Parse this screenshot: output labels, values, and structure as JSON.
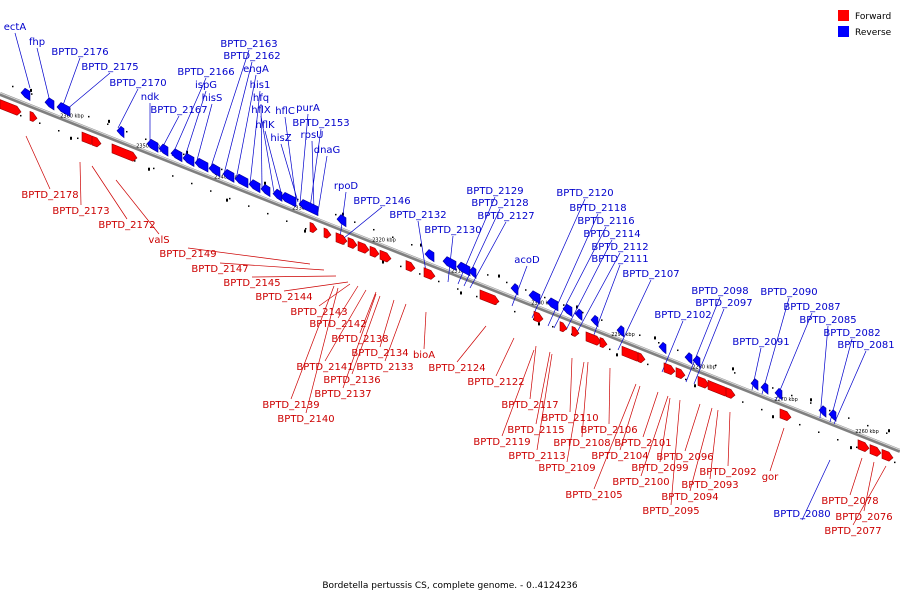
{
  "colors": {
    "forward": "#ff0000",
    "reverse": "#0000ff",
    "forward_label": "#cc0000",
    "reverse_label": "#0000cc",
    "backbone": "#808080"
  },
  "legend": [
    {
      "label": "Forward",
      "strand": "forward"
    },
    {
      "label": "Reverse",
      "strand": "reverse"
    }
  ],
  "caption": "Bordetella pertussis CS, complete genome. - 0..4124236",
  "ticks": [
    "2360 kbp",
    "2350 kbp",
    "2340 kbp",
    "2330 kbp",
    "2320 kbp",
    "2310 kbp",
    "2300 kbp",
    "2290 kbp",
    "2280 kbp",
    "2270 kbp",
    "2260 kbp"
  ],
  "reverse_genes": [
    "ectA",
    "fhp",
    "BPTD_2176",
    "BPTD_2175",
    "BPTD_2170",
    "ndk",
    "BPTD_2167",
    "BPTD_2166",
    "ispG",
    "hisS",
    "BPTD_2163",
    "BPTD_2162",
    "engA",
    "his1",
    "hfq",
    "hflX",
    "hflK",
    "hflC",
    "hisZ",
    "purA",
    "BPTD_2153",
    "rpsU",
    "dnaG",
    "rpoD",
    "BPTD_2146",
    "BPTD_2132",
    "BPTD_2130",
    "BPTD_2129",
    "BPTD_2128",
    "BPTD_2127",
    "acoD",
    "BPTD_2120",
    "BPTD_2118",
    "BPTD_2116",
    "BPTD_2114",
    "BPTD_2112",
    "BPTD_2111",
    "BPTD_2107",
    "BPTD_2102",
    "BPTD_2098",
    "BPTD_2097",
    "BPTD_2091",
    "BPTD_2090",
    "BPTD_2087",
    "BPTD_2085",
    "BPTD_2082",
    "BPTD_2081",
    "BPTD_2080"
  ],
  "forward_genes": [
    "BPTD_2178",
    "BPTD_2173",
    "BPTD_2172",
    "valS",
    "BPTD_2149",
    "BPTD_2147",
    "BPTD_2145",
    "BPTD_2144",
    "BPTD_2143",
    "BPTD_2142",
    "BPTD_2141",
    "BPTD_2138",
    "BPTD_2139",
    "BPTD_2140",
    "BPTD_2137",
    "BPTD_2136",
    "BPTD_2134",
    "BPTD_2133",
    "bioA",
    "BPTD_2124",
    "BPTD_2122",
    "BPTD_2117",
    "BPTD_2115",
    "BPTD_2119",
    "BPTD_2113",
    "BPTD_2110",
    "BPTD_2108",
    "BPTD_2109",
    "BPTD_2106",
    "BPTD_2105",
    "BPTD_2104",
    "BPTD_2101",
    "BPTD_2100",
    "BPTD_2099",
    "BPTD_2096",
    "BPTD_2095",
    "BPTD_2094",
    "BPTD_2093",
    "BPTD_2092",
    "gor",
    "BPTD_2078",
    "BPTD_2076",
    "BPTD_2077"
  ]
}
